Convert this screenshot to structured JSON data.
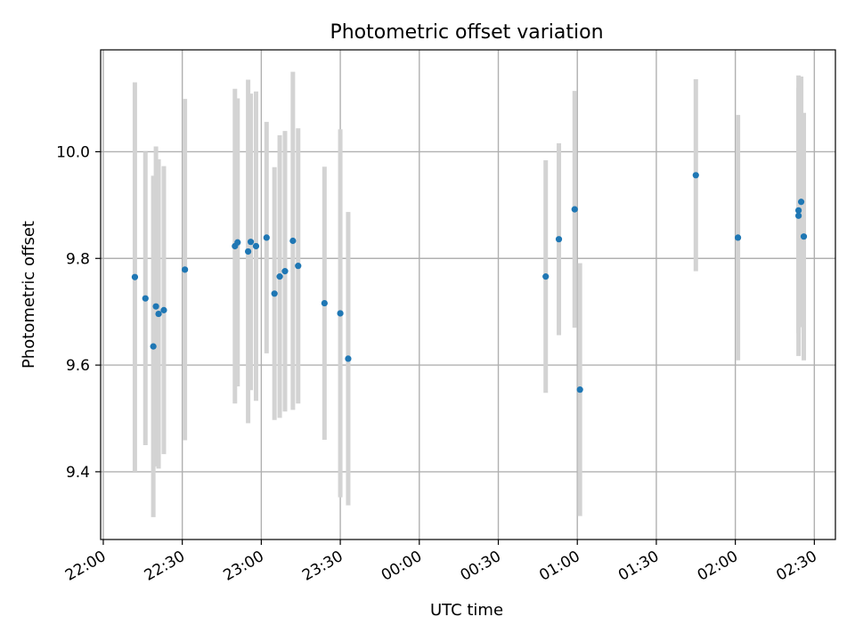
{
  "chart_data": {
    "type": "scatter",
    "title": "Photometric offset variation",
    "xlabel": "UTC time",
    "ylabel": "Photometric offset",
    "x_ticks": [
      "22:00",
      "22:30",
      "23:00",
      "23:30",
      "00:00",
      "00:30",
      "01:00",
      "01:30",
      "02:00",
      "02:30"
    ],
    "y_ticks": [
      "9.4",
      "9.6",
      "9.8",
      "10.0"
    ],
    "y_tick_values": [
      9.4,
      9.6,
      9.8,
      10.0
    ],
    "xlim_minutes_after_2200": [
      -1,
      278
    ],
    "ylim": [
      9.273,
      10.191
    ],
    "grid": true,
    "marker_color": "#1f77b4",
    "errorbar_color": "#d3d3d3",
    "points": [
      {
        "t": "22:12",
        "y": 9.765,
        "err": 0.365
      },
      {
        "t": "22:16",
        "y": 9.725,
        "err": 0.275
      },
      {
        "t": "22:19",
        "y": 9.635,
        "err": 0.32
      },
      {
        "t": "22:20",
        "y": 9.71,
        "err": 0.3
      },
      {
        "t": "22:21",
        "y": 9.696,
        "err": 0.29
      },
      {
        "t": "22:23",
        "y": 9.703,
        "err": 0.27
      },
      {
        "t": "22:31",
        "y": 9.779,
        "err": 0.32
      },
      {
        "t": "22:50",
        "y": 9.823,
        "err": 0.295
      },
      {
        "t": "22:51",
        "y": 9.83,
        "err": 0.27
      },
      {
        "t": "22:55",
        "y": 9.813,
        "err": 0.322
      },
      {
        "t": "22:56",
        "y": 9.831,
        "err": 0.278
      },
      {
        "t": "22:58",
        "y": 9.823,
        "err": 0.29
      },
      {
        "t": "23:02",
        "y": 9.839,
        "err": 0.217
      },
      {
        "t": "23:05",
        "y": 9.734,
        "err": 0.237
      },
      {
        "t": "23:07",
        "y": 9.766,
        "err": 0.265
      },
      {
        "t": "23:09",
        "y": 9.776,
        "err": 0.263
      },
      {
        "t": "23:12",
        "y": 9.833,
        "err": 0.317
      },
      {
        "t": "23:14",
        "y": 9.786,
        "err": 0.258
      },
      {
        "t": "23:24",
        "y": 9.716,
        "err": 0.256
      },
      {
        "t": "23:30",
        "y": 9.697,
        "err": 0.345
      },
      {
        "t": "23:33",
        "y": 9.612,
        "err": 0.275
      },
      {
        "t": "00:48",
        "y": 9.766,
        "err": 0.218
      },
      {
        "t": "00:53",
        "y": 9.836,
        "err": 0.18
      },
      {
        "t": "00:59",
        "y": 9.892,
        "err": 0.222
      },
      {
        "t": "01:01",
        "y": 9.554,
        "err": 0.237
      },
      {
        "t": "01:45",
        "y": 9.956,
        "err": 0.18
      },
      {
        "t": "02:01",
        "y": 9.839,
        "err": 0.23
      },
      {
        "t": "02:24",
        "y": 9.88,
        "err": 0.263
      },
      {
        "t": "02:24",
        "y": 9.89,
        "err": 0.23
      },
      {
        "t": "02:25",
        "y": 9.906,
        "err": 0.235
      },
      {
        "t": "02:26",
        "y": 9.841,
        "err": 0.232
      }
    ]
  }
}
